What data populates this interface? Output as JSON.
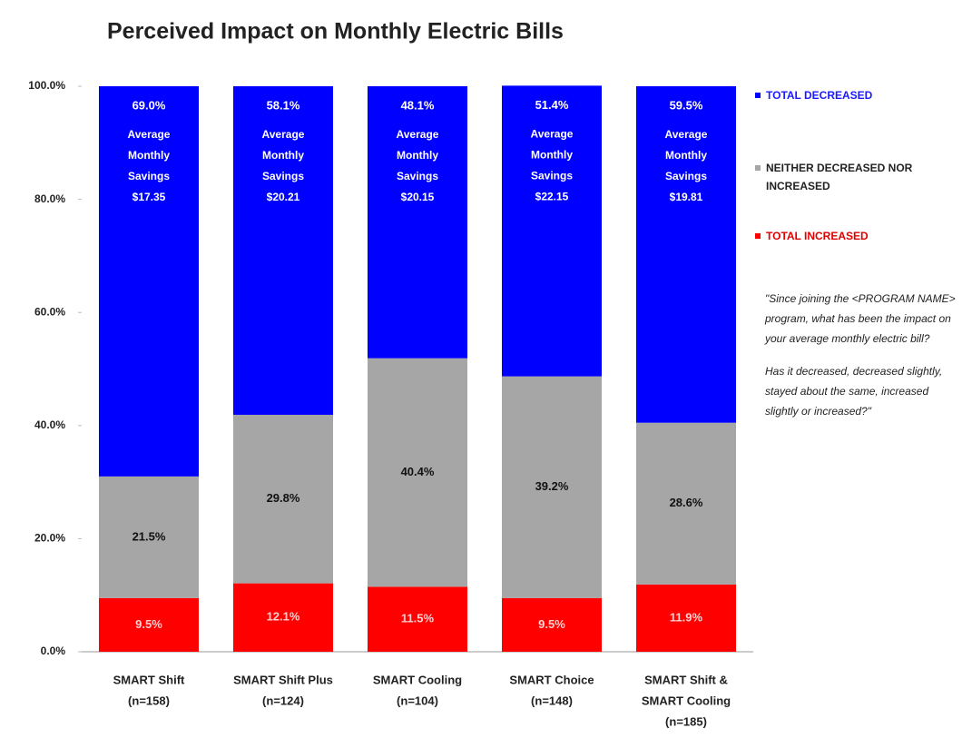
{
  "chart_data": {
    "type": "stacked_bar",
    "title": "Perceived Impact on Monthly Electric Bills",
    "categories": [
      [
        "SMART Shift",
        "(n=158)"
      ],
      [
        "SMART Shift Plus",
        "(n=124)"
      ],
      [
        "SMART Cooling",
        "(n=104)"
      ],
      [
        "SMART Choice",
        "(n=148)"
      ],
      [
        "SMART Shift &",
        "SMART Cooling",
        "(n=185)"
      ]
    ],
    "series": [
      {
        "name": "TOTAL INCREASED",
        "color": "#ff0000",
        "values": [
          9.5,
          12.1,
          11.5,
          9.5,
          11.9
        ],
        "value_labels": [
          "9.5%",
          "12.1%",
          "11.5%",
          "9.5%",
          "11.9%"
        ]
      },
      {
        "name": "NEITHER DECREASED NOR INCREASED",
        "color": "#a6a6a6",
        "values": [
          21.5,
          29.8,
          40.4,
          39.2,
          28.6
        ],
        "value_labels": [
          "21.5%",
          "29.8%",
          "40.4%",
          "39.2%",
          "28.6%"
        ]
      },
      {
        "name": "TOTAL DECREASED",
        "color": "#0000ff",
        "values": [
          69.0,
          58.1,
          48.1,
          51.4,
          59.5
        ],
        "value_labels": [
          "69.0%",
          "58.1%",
          "48.1%",
          "51.4%",
          "59.5%"
        ]
      }
    ],
    "annotations": [
      [
        "Average",
        "Monthly",
        "Savings",
        "$17.35"
      ],
      [
        "Average",
        "Monthly",
        "Savings",
        "$20.21"
      ],
      [
        "Average",
        "Monthly",
        "Savings",
        "$20.15"
      ],
      [
        "Average",
        "Monthly",
        "Savings",
        "$22.15"
      ],
      [
        "Average",
        "Monthly",
        "Savings",
        "$19.81"
      ]
    ],
    "note": [
      "\"Since joining the  <PROGRAM NAME> program, what has been the impact on your average monthly electric bill?",
      "Has it decreased, decreased slightly, stayed about the same, increased slightly or increased?\""
    ],
    "ylim": [
      0,
      100
    ],
    "yticks": [
      {
        "value": 0,
        "label": "0.0%"
      },
      {
        "value": 20,
        "label": "20.0%"
      },
      {
        "value": 40,
        "label": "40.0%"
      },
      {
        "value": 60,
        "label": "60.0%"
      },
      {
        "value": 80,
        "label": "80.0%"
      },
      {
        "value": 100,
        "label": "100.0%"
      }
    ],
    "legend": "right"
  }
}
